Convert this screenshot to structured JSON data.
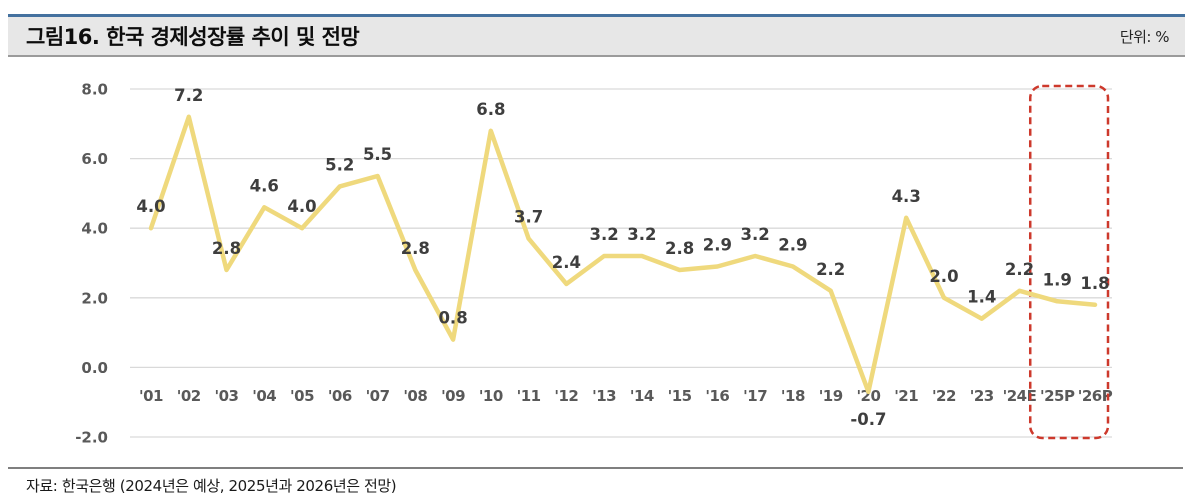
{
  "header": {
    "title": "그림16. 한국 경제성장률 추이 및 전망",
    "unit_label": "단위: %"
  },
  "footer": {
    "source": "자료: 한국은행 (2024년은 예상, 2025년과 2026년은 전망)"
  },
  "chart_data": {
    "type": "line",
    "title": "한국 경제성장률 추이 및 전망",
    "categories": [
      "'01",
      "'02",
      "'03",
      "'04",
      "'05",
      "'06",
      "'07",
      "'08",
      "'09",
      "'10",
      "'11",
      "'12",
      "'13",
      "'14",
      "'15",
      "'16",
      "'17",
      "'18",
      "'19",
      "'20",
      "'21",
      "'22",
      "'23",
      "'24E",
      "'25P",
      "'26P"
    ],
    "values": [
      4.0,
      7.2,
      2.8,
      4.6,
      4.0,
      5.2,
      5.5,
      2.8,
      0.8,
      6.8,
      3.7,
      2.4,
      3.2,
      3.2,
      2.8,
      2.9,
      3.2,
      2.9,
      2.2,
      -0.7,
      4.3,
      2.0,
      1.4,
      2.2,
      1.9,
      1.8
    ],
    "ylim": [
      -2.0,
      8.0
    ],
    "ytick_labels": [
      "8.0",
      "6.0",
      "4.0",
      "2.0",
      "0.0",
      "-2.0"
    ],
    "xlabel": "",
    "ylabel": "",
    "grid": "horizontal",
    "legend_position": "none",
    "line_color": "#efd97d",
    "data_label_color": "#3e3e3e",
    "axis_text_color": "#595959",
    "gridline_color": "#d9d9d9",
    "highlight": {
      "categories": [
        "'25P",
        "'26P"
      ],
      "box_color": "#cd392c",
      "style": "dashed-rounded-rect"
    }
  }
}
